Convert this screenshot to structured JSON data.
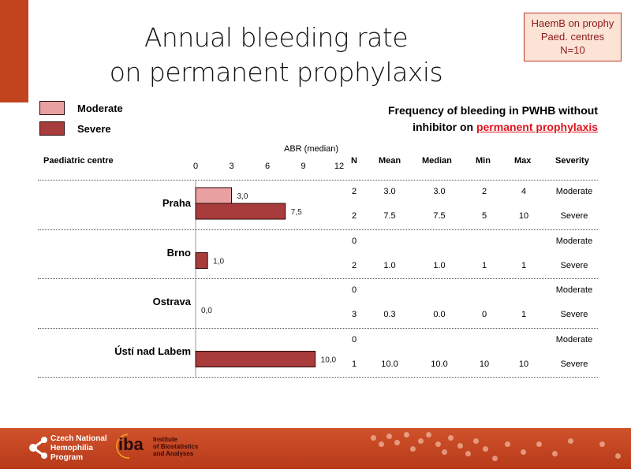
{
  "title": {
    "line1": "Annual bleeding rate",
    "line2": "on permanent prophylaxis"
  },
  "info_box": {
    "line1": "HaemB on prophy",
    "line2": "Paed. centres",
    "line3": "N=10"
  },
  "frequency_title": {
    "line1": "Frequency of bleeding in PWHB without",
    "line2_prefix": "inhibitor on ",
    "line2_highlight": "permanent prophylaxis"
  },
  "colors": {
    "moderate": "#e8a0a0",
    "severe": "#a83b3b",
    "accent": "#c2441f",
    "highlight": "#e0141e"
  },
  "table": {
    "headers": {
      "centre": "Paediatric centre",
      "n": "N",
      "mean": "Mean",
      "median": "Median",
      "min": "Min",
      "max": "Max",
      "severity": "Severity"
    },
    "rows": [
      {
        "centre": "Praha",
        "severity": "Moderate",
        "n": "2",
        "mean": "3.0",
        "median": "3.0",
        "min": "2",
        "max": "4"
      },
      {
        "centre": "Praha",
        "severity": "Severe",
        "n": "2",
        "mean": "7.5",
        "median": "7.5",
        "min": "5",
        "max": "10"
      },
      {
        "centre": "Brno",
        "severity": "Moderate",
        "n": "0",
        "mean": "",
        "median": "",
        "min": "",
        "max": ""
      },
      {
        "centre": "Brno",
        "severity": "Severe",
        "n": "2",
        "mean": "1.0",
        "median": "1.0",
        "min": "1",
        "max": "1"
      },
      {
        "centre": "Ostrava",
        "severity": "Moderate",
        "n": "0",
        "mean": "",
        "median": "",
        "min": "",
        "max": ""
      },
      {
        "centre": "Ostrava",
        "severity": "Severe",
        "n": "3",
        "mean": "0.3",
        "median": "0.0",
        "min": "0",
        "max": "1"
      },
      {
        "centre": "Ústí nad Labem",
        "severity": "Moderate",
        "n": "0",
        "mean": "",
        "median": "",
        "min": "",
        "max": ""
      },
      {
        "centre": "Ústí nad Labem",
        "severity": "Severe",
        "n": "1",
        "mean": "10.0",
        "median": "10.0",
        "min": "10",
        "max": "10"
      }
    ]
  },
  "chart_data": {
    "type": "bar",
    "orientation": "horizontal",
    "title": "Annual bleeding rate on permanent prophylaxis",
    "xlabel": "ABR (median)",
    "ylabel": "Paediatric centre",
    "categories": [
      "Praha",
      "Brno",
      "Ostrava",
      "Ústí nad Labem"
    ],
    "series": [
      {
        "name": "Moderate",
        "values": [
          3.0,
          null,
          null,
          null
        ],
        "labels": [
          "3,0",
          "",
          "",
          ""
        ]
      },
      {
        "name": "Severe",
        "values": [
          7.5,
          1.0,
          0.0,
          10.0
        ],
        "labels": [
          "7,5",
          "1,0",
          "0,0",
          "10,0"
        ]
      }
    ],
    "xlim": [
      0,
      12
    ],
    "xticks": [
      "0",
      "3",
      "6",
      "9",
      "12"
    ],
    "legend": [
      "Moderate",
      "Severe"
    ],
    "legend_position": "top-left",
    "grid": false
  },
  "footer": {
    "program": [
      "Czech National",
      "Hemophilia",
      "Program"
    ],
    "iba_logo": "iba",
    "iba_text": [
      "Institute",
      "of Biostatistics",
      "and Analyses"
    ]
  }
}
